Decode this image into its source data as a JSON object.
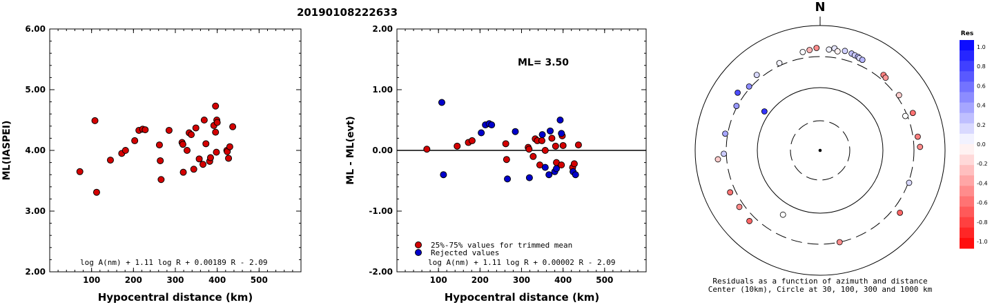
{
  "event_id": "20190108222633",
  "chart_data": [
    {
      "type": "scatter",
      "xlabel": "Hypocentral distance (km)",
      "ylabel": "ML(IASPEI)",
      "xlim": [
        0,
        600
      ],
      "ylim": [
        2.0,
        6.0
      ],
      "xticks": [
        "100",
        "200",
        "300",
        "400",
        "500"
      ],
      "yticks": [
        "2.00",
        "3.00",
        "4.00",
        "5.00",
        "6.00"
      ],
      "formula": "log A(nm) + 1.11 log R + 0.00189 R - 2.09",
      "points": [
        [
          72,
          3.65
        ],
        [
          108,
          4.49
        ],
        [
          112,
          3.31
        ],
        [
          145,
          3.84
        ],
        [
          172,
          3.95
        ],
        [
          181,
          4.0
        ],
        [
          203,
          4.16
        ],
        [
          213,
          4.33
        ],
        [
          222,
          4.35
        ],
        [
          228,
          4.34
        ],
        [
          262,
          4.09
        ],
        [
          264,
          3.83
        ],
        [
          266,
          3.52
        ],
        [
          285,
          4.33
        ],
        [
          316,
          4.13
        ],
        [
          318,
          4.1
        ],
        [
          319,
          3.64
        ],
        [
          328,
          4.0
        ],
        [
          333,
          4.29
        ],
        [
          338,
          4.26
        ],
        [
          344,
          3.69
        ],
        [
          349,
          4.37
        ],
        [
          357,
          3.86
        ],
        [
          366,
          3.77
        ],
        [
          369,
          4.5
        ],
        [
          373,
          4.11
        ],
        [
          382,
          3.82
        ],
        [
          384,
          3.88
        ],
        [
          392,
          4.41
        ],
        [
          396,
          4.3
        ],
        [
          396,
          4.73
        ],
        [
          398,
          3.97
        ],
        [
          399,
          4.5
        ],
        [
          400,
          4.46
        ],
        [
          423,
          4.0
        ],
        [
          424,
          3.98
        ],
        [
          427,
          3.87
        ],
        [
          430,
          4.06
        ],
        [
          437,
          4.39
        ]
      ]
    },
    {
      "type": "scatter",
      "xlabel": "Hypocentral distance (km)",
      "ylabel": "ML - ML(evt)",
      "xlim": [
        0,
        600
      ],
      "ylim": [
        -2.0,
        2.0
      ],
      "xticks": [
        "100",
        "200",
        "300",
        "400",
        "500"
      ],
      "yticks": [
        "-2.00",
        "-1.00",
        "0.00",
        "1.00",
        "2.00"
      ],
      "ml_text": "ML= 3.50",
      "legend": [
        "25%-75% values for trimmed mean",
        "Rejected values"
      ],
      "formula": "log A(nm) + 1.11 log R + 0.00002 R - 2.09",
      "series": [
        {
          "name": "25%-75% values for trimmed mean",
          "color": "#d40000",
          "points": [
            [
              72,
              0.02
            ],
            [
              145,
              0.07
            ],
            [
              172,
              0.13
            ],
            [
              181,
              0.16
            ],
            [
              262,
              0.11
            ],
            [
              264,
              -0.15
            ],
            [
              316,
              0.05
            ],
            [
              318,
              0.02
            ],
            [
              328,
              -0.1
            ],
            [
              333,
              0.19
            ],
            [
              338,
              0.16
            ],
            [
              344,
              -0.24
            ],
            [
              349,
              0.16
            ],
            [
              357,
              0.0
            ],
            [
              373,
              0.2
            ],
            [
              382,
              0.07
            ],
            [
              384,
              -0.2
            ],
            [
              396,
              -0.24
            ],
            [
              398,
              0.24
            ],
            [
              400,
              0.08
            ],
            [
              423,
              -0.28
            ],
            [
              427,
              -0.22
            ],
            [
              437,
              0.09
            ]
          ]
        },
        {
          "name": "Rejected values",
          "color": "#0000cc",
          "points": [
            [
              108,
              0.79
            ],
            [
              112,
              -0.4
            ],
            [
              203,
              0.29
            ],
            [
              213,
              0.42
            ],
            [
              222,
              0.44
            ],
            [
              228,
              0.42
            ],
            [
              266,
              -0.47
            ],
            [
              285,
              0.31
            ],
            [
              319,
              -0.45
            ],
            [
              350,
              0.26
            ],
            [
              357,
              -0.28
            ],
            [
              366,
              -0.4
            ],
            [
              369,
              0.32
            ],
            [
              380,
              -0.35
            ],
            [
              384,
              -0.3
            ],
            [
              393,
              0.5
            ],
            [
              396,
              0.28
            ],
            [
              424,
              -0.35
            ],
            [
              430,
              -0.4
            ]
          ]
        }
      ]
    },
    {
      "type": "scatter",
      "subtype": "polar",
      "north_label": "N",
      "caption_1": "Residuals as a function of azimuth and distance",
      "caption_2": "Center (10km), Circle at 30, 100, 300 and 1000 km",
      "colorbar_title": "Res",
      "colorbar_ticks": [
        "1.0",
        "0.8",
        "0.6",
        "0.4",
        "0.2",
        "0.0",
        "-0.2",
        "-0.4",
        "-0.6",
        "-0.8",
        "-1.0"
      ],
      "rings_km": [
        30,
        100,
        300,
        1000
      ],
      "points": [
        {
          "az": 8,
          "dist": 430,
          "res": 0.1
        },
        {
          "az": 14,
          "dist": 420,
          "res": 0.18
        },
        {
          "az": 18,
          "dist": 410,
          "res": 0.25
        },
        {
          "az": 20,
          "dist": 400,
          "res": 0.2
        },
        {
          "az": 22,
          "dist": 395,
          "res": 0.3
        },
        {
          "az": 23,
          "dist": 385,
          "res": 0.15
        },
        {
          "az": 25,
          "dist": 380,
          "res": 0.28
        },
        {
          "az": 10,
          "dist": 390,
          "res": -0.05
        },
        {
          "az": 5,
          "dist": 400,
          "res": 0.05
        },
        {
          "az": -2,
          "dist": 420,
          "res": -0.45
        },
        {
          "az": -6,
          "dist": 395,
          "res": -0.3
        },
        {
          "az": -10,
          "dist": 380,
          "res": 0.02
        },
        {
          "az": 40,
          "dist": 360,
          "res": -0.5
        },
        {
          "az": 42,
          "dist": 350,
          "res": -0.4
        },
        {
          "az": 55,
          "dist": 330,
          "res": -0.2
        },
        {
          "az": 68,
          "dist": 380,
          "res": -0.55
        },
        {
          "az": 82,
          "dist": 360,
          "res": -0.5
        },
        {
          "az": 88,
          "dist": 380,
          "res": -0.45
        },
        {
          "az": 68,
          "dist": 280,
          "res": 0.0
        },
        {
          "az": 110,
          "dist": 310,
          "res": 0.15
        },
        {
          "az": 128,
          "dist": 400,
          "res": -0.6
        },
        {
          "az": 168,
          "dist": 300,
          "res": -0.45
        },
        {
          "az": 210,
          "dist": 150,
          "res": 0.0
        },
        {
          "az": 225,
          "dist": 380,
          "res": -0.6
        },
        {
          "az": 235,
          "dist": 360,
          "res": -0.45
        },
        {
          "az": 245,
          "dist": 370,
          "res": -0.55
        },
        {
          "az": 265,
          "dist": 420,
          "res": -0.2
        },
        {
          "az": 268,
          "dist": 330,
          "res": 0.2
        },
        {
          "az": 280,
          "dist": 330,
          "res": 0.35
        },
        {
          "az": 298,
          "dist": 310,
          "res": 0.4
        },
        {
          "az": 305,
          "dist": 120,
          "res": 0.8
        },
        {
          "az": 305,
          "dist": 390,
          "res": 0.7
        },
        {
          "az": 312,
          "dist": 320,
          "res": 0.45
        },
        {
          "az": 320,
          "dist": 360,
          "res": 0.15
        },
        {
          "az": 335,
          "dist": 330,
          "res": 0.05
        }
      ]
    }
  ]
}
